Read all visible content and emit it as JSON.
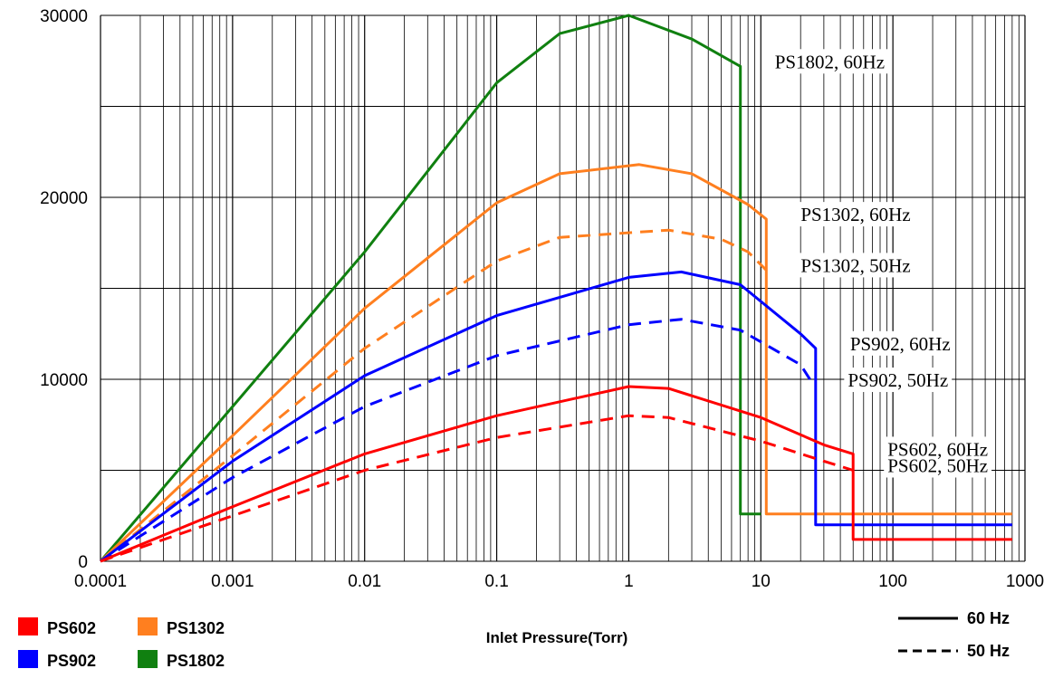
{
  "chart_data": {
    "type": "line",
    "xscale": "log",
    "xlabel": "Inlet Pressure(Torr)",
    "ylabel": "",
    "xlim": [
      0.0001,
      1000
    ],
    "ylim": [
      0,
      30000
    ],
    "xticks": [
      "0.0001",
      "0.001",
      "0.01",
      "0.1",
      "1",
      "10",
      "100",
      "1000"
    ],
    "yticks": [
      "0",
      "10000",
      "20000",
      "30000"
    ],
    "grid": true,
    "colors": {
      "PS602": "#ff0000",
      "PS902": "#0000ff",
      "PS1302": "#ff7f1f",
      "PS1802": "#108010"
    },
    "series": [
      {
        "name": "PS1802",
        "model": "PS1802",
        "freq": "60 Hz",
        "points": [
          [
            0.0001,
            0
          ],
          [
            0.001,
            8500
          ],
          [
            0.01,
            17000
          ],
          [
            0.1,
            26300
          ],
          [
            0.3,
            29000
          ],
          [
            1,
            30000
          ],
          [
            3,
            28700
          ],
          [
            7,
            27200
          ],
          [
            7,
            2600
          ],
          [
            10,
            2600
          ]
        ]
      },
      {
        "name": "PS1302",
        "model": "PS1302",
        "freq": "60 Hz",
        "points": [
          [
            0.0001,
            0
          ],
          [
            0.001,
            6900
          ],
          [
            0.01,
            13900
          ],
          [
            0.1,
            19700
          ],
          [
            0.3,
            21300
          ],
          [
            1.2,
            21800
          ],
          [
            3,
            21300
          ],
          [
            8,
            19600
          ],
          [
            11,
            18800
          ],
          [
            11,
            2600
          ],
          [
            800,
            2600
          ]
        ]
      },
      {
        "name": "PS1302",
        "model": "PS1302",
        "freq": "50 Hz",
        "points": [
          [
            0.0001,
            0
          ],
          [
            0.001,
            5800
          ],
          [
            0.01,
            11700
          ],
          [
            0.1,
            16500
          ],
          [
            0.3,
            17800
          ],
          [
            2,
            18200
          ],
          [
            5,
            17700
          ],
          [
            8,
            17000
          ],
          [
            11,
            16000
          ]
        ]
      },
      {
        "name": "PS902",
        "model": "PS902",
        "freq": "60 Hz",
        "points": [
          [
            0.0001,
            0
          ],
          [
            0.001,
            5500
          ],
          [
            0.01,
            10200
          ],
          [
            0.1,
            13500
          ],
          [
            1,
            15600
          ],
          [
            2.5,
            15900
          ],
          [
            7,
            15200
          ],
          [
            20,
            12500
          ],
          [
            26,
            11700
          ],
          [
            26,
            2000
          ],
          [
            800,
            2000
          ]
        ]
      },
      {
        "name": "PS902",
        "model": "PS902",
        "freq": "50 Hz",
        "points": [
          [
            0.0001,
            0
          ],
          [
            0.001,
            4600
          ],
          [
            0.01,
            8500
          ],
          [
            0.1,
            11300
          ],
          [
            1,
            13000
          ],
          [
            2.5,
            13300
          ],
          [
            7,
            12700
          ],
          [
            20,
            10800
          ],
          [
            25,
            9700
          ]
        ]
      },
      {
        "name": "PS602",
        "model": "PS602",
        "freq": "60 Hz",
        "points": [
          [
            0.0001,
            0
          ],
          [
            0.001,
            3000
          ],
          [
            0.01,
            5900
          ],
          [
            0.1,
            8000
          ],
          [
            1,
            9600
          ],
          [
            2,
            9500
          ],
          [
            10,
            7900
          ],
          [
            30,
            6400
          ],
          [
            50,
            5900
          ],
          [
            50,
            1200
          ],
          [
            800,
            1200
          ]
        ]
      },
      {
        "name": "PS602",
        "model": "PS602",
        "freq": "50 Hz",
        "points": [
          [
            0.0001,
            0
          ],
          [
            0.001,
            2500
          ],
          [
            0.01,
            5000
          ],
          [
            0.1,
            6800
          ],
          [
            1,
            8000
          ],
          [
            2,
            7900
          ],
          [
            10,
            6600
          ],
          [
            30,
            5500
          ],
          [
            50,
            5000
          ]
        ]
      }
    ],
    "annotations": [
      {
        "text": "PS1802, 60Hz",
        "x": 7,
        "y": 27200
      },
      {
        "text": "PS1302, 60Hz",
        "x": 11,
        "y": 18800
      },
      {
        "text": "PS1302, 50Hz",
        "x": 11,
        "y": 16000
      },
      {
        "text": "PS902, 60Hz",
        "x": 26,
        "y": 11700
      },
      {
        "text": "PS902, 50Hz",
        "x": 25,
        "y": 9700
      },
      {
        "text": "PS602, 60Hz",
        "x": 50,
        "y": 5900
      },
      {
        "text": "PS602, 50Hz",
        "x": 50,
        "y": 5000
      }
    ],
    "legend_models": [
      {
        "label": "PS602",
        "color": "#ff0000"
      },
      {
        "label": "PS1302",
        "color": "#ff7f1f"
      },
      {
        "label": "PS902",
        "color": "#0000ff"
      },
      {
        "label": "PS1802",
        "color": "#108010"
      }
    ],
    "legend_lines": [
      {
        "label": "60 Hz",
        "style": "solid"
      },
      {
        "label": "50 Hz",
        "style": "dashed"
      }
    ]
  }
}
